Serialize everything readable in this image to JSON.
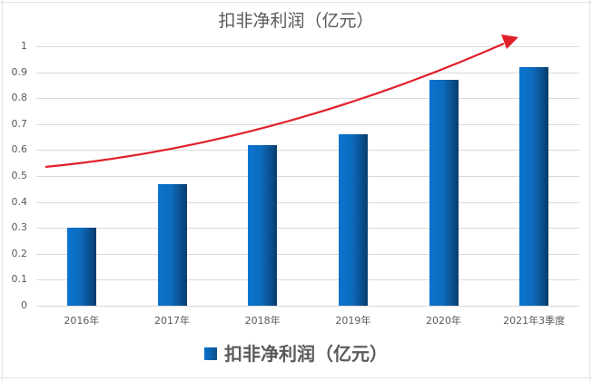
{
  "chart_data": {
    "type": "bar",
    "title": "扣非净利润（亿元）",
    "categories": [
      "2016年",
      "2017年",
      "2018年",
      "2019年",
      "2020年",
      "2021年3季度"
    ],
    "series": [
      {
        "name": "扣非净利润（亿元）",
        "values": [
          0.3,
          0.47,
          0.62,
          0.66,
          0.87,
          0.92
        ],
        "color": "#0a6cc4"
      }
    ],
    "xlabel": "",
    "ylabel": "",
    "ylim": [
      0,
      1
    ],
    "yticks": [
      "0",
      "0.1",
      "0.2",
      "0.3",
      "0.4",
      "0.5",
      "0.6",
      "0.7",
      "0.8",
      "0.9",
      "1"
    ],
    "grid": true,
    "legend_position": "bottom",
    "annotations": [
      {
        "type": "curved-arrow",
        "color": "#e0202a",
        "direction": "up-right",
        "meaning": "upward trend"
      }
    ]
  },
  "legend": {
    "label": "扣非净利润（亿元）"
  }
}
